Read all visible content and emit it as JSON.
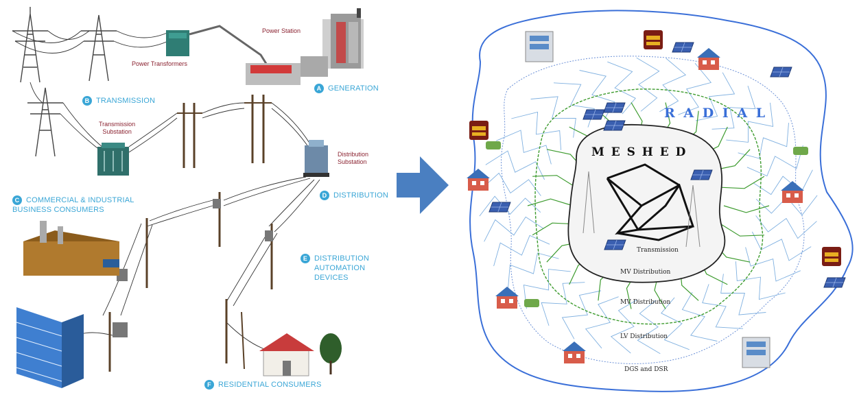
{
  "left_panel": {
    "segments": [
      {
        "badge": "A",
        "label": "GENERATION"
      },
      {
        "badge": "B",
        "label": "TRANSMISSION"
      },
      {
        "badge": "C",
        "label_line1": "COMMERCIAL & INDUSTRIAL",
        "label_line2": "BUSINESS CONSUMERS"
      },
      {
        "badge": "D",
        "label": "DISTRIBUTION"
      },
      {
        "badge": "E",
        "label_line1": "DISTRIBUTION",
        "label_line2": "AUTOMATION",
        "label_line3": "DEVICES"
      },
      {
        "badge": "F",
        "label": "RESIDENTIAL CONSUMERS"
      }
    ],
    "sublabels": {
      "power_station": "Power Station",
      "power_transformers": "Power Transformers",
      "transmission_substation_1": "Transmission",
      "transmission_substation_2": "Substation",
      "distribution_substation_1": "Distribution",
      "distribution_substation_2": "Substation"
    }
  },
  "right_panel": {
    "radial_label": "R A D I A L",
    "meshed_label": "M E S H E D",
    "zones": [
      "Transmission",
      "MV Distribution",
      "MV Distribution",
      "LV Distribution",
      "DGS and DSR"
    ]
  },
  "colors": {
    "accent": "#3aa6d6",
    "sublabel": "#8a2230",
    "arrow": "#4a7fc1",
    "boundary": "#3a6fd8",
    "green": "#3d9b2e"
  }
}
